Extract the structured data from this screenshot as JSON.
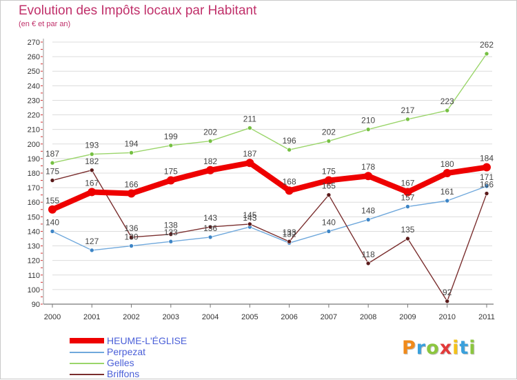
{
  "title": "Evolution des Impôts locaux par Habitant",
  "subtitle": "(en € et par an)",
  "logo_letters": [
    {
      "ch": "P",
      "color": "#f08a1a"
    },
    {
      "ch": "r",
      "color": "#3aa0dc"
    },
    {
      "ch": "o",
      "color": "#8cc63f"
    },
    {
      "ch": "x",
      "color": "#e23a3a"
    },
    {
      "ch": "i",
      "color": "#f4c21a"
    },
    {
      "ch": "t",
      "color": "#3aa0dc"
    },
    {
      "ch": "i",
      "color": "#8cc63f"
    }
  ],
  "chart_data": {
    "type": "line",
    "title": "Evolution des Impôts locaux par Habitant",
    "subtitle": "(en € et par an)",
    "xlabel": "",
    "ylabel": "",
    "x": [
      "2000",
      "2001",
      "2002",
      "2003",
      "2004",
      "2005",
      "2006",
      "2007",
      "2008",
      "2009",
      "2010",
      "2011"
    ],
    "ylim": [
      90,
      270
    ],
    "yticks": [
      90,
      100,
      110,
      120,
      130,
      140,
      150,
      160,
      170,
      180,
      190,
      200,
      210,
      220,
      230,
      240,
      250,
      260,
      270
    ],
    "grid": true,
    "legend": "bottom-left",
    "series": [
      {
        "name": "HEUME-L'ÉGLISE",
        "color": "#ee0000",
        "marker_color": "#ee0000",
        "weight": "heavy",
        "values": [
          155,
          167,
          166,
          175,
          182,
          187,
          168,
          175,
          178,
          167,
          180,
          184
        ]
      },
      {
        "name": "Perpezat",
        "color": "#6fa8dc",
        "marker_color": "#3d85c6",
        "weight": "normal",
        "values": [
          140,
          127,
          130,
          133,
          136,
          143,
          132,
          140,
          148,
          157,
          161,
          171
        ]
      },
      {
        "name": "Gelles",
        "color": "#9ad56a",
        "marker_color": "#76c043",
        "weight": "normal",
        "values": [
          187,
          193,
          194,
          199,
          202,
          211,
          196,
          202,
          210,
          217,
          223,
          262
        ]
      },
      {
        "name": "Briffons",
        "color": "#7a2e2e",
        "marker_color": "#5a1a1a",
        "weight": "normal",
        "values": [
          175,
          182,
          136,
          138,
          143,
          145,
          133,
          165,
          118,
          135,
          92,
          166
        ]
      }
    ]
  }
}
